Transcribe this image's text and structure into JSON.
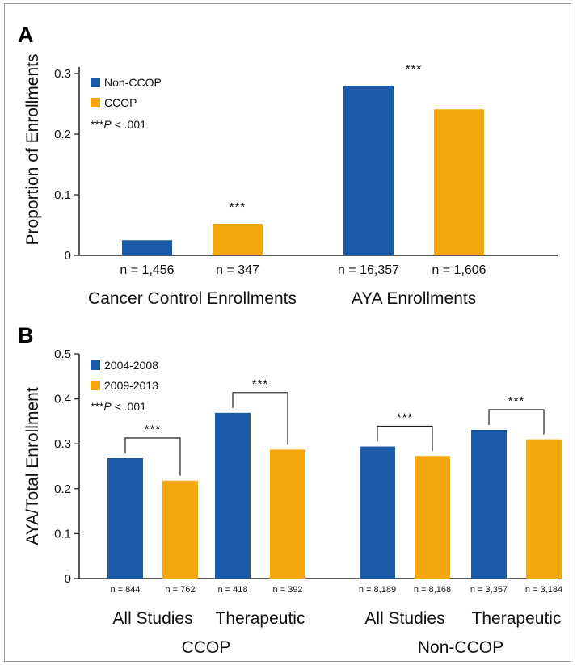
{
  "colors": {
    "blue": "#1a5aa6",
    "orange": "#f4a70a"
  },
  "chart_data": [
    {
      "panel": "A",
      "type": "bar",
      "ylabel": "Proportion of Enrollments",
      "ylim": [
        0,
        0.3
      ],
      "yticks": [
        "0",
        "0.1",
        "0.2",
        "0.3"
      ],
      "legend": [
        "Non-CCOP",
        "CCOP"
      ],
      "significance_note": {
        "stars": "***",
        "p": "P",
        "rest": " < .001"
      },
      "groups": [
        {
          "label": "Cancer Control Enrollments",
          "bars": [
            {
              "series": "Non-CCOP",
              "value": 0.025,
              "n": "n = 1,456"
            },
            {
              "series": "CCOP",
              "value": 0.052,
              "n": "n = 347"
            }
          ],
          "star": "***"
        },
        {
          "label": "AYA Enrollments",
          "bars": [
            {
              "series": "Non-CCOP",
              "value": 0.28,
              "n": "n = 16,357"
            },
            {
              "series": "CCOP",
              "value": 0.241,
              "n": "n = 1,606"
            }
          ],
          "star": "***"
        }
      ]
    },
    {
      "panel": "B",
      "type": "bar",
      "ylabel": "AYA/Total Enrollment",
      "ylim": [
        0,
        0.5
      ],
      "yticks": [
        "0",
        "0.1",
        "0.2",
        "0.3",
        "0.4",
        "0.5"
      ],
      "legend": [
        "2004-2008",
        "2009-2013"
      ],
      "significance_note": {
        "stars": "***",
        "p": "P",
        "rest": " < .001"
      },
      "groups": [
        {
          "label": "All Studies",
          "category": "CCOP",
          "bars": [
            {
              "series": "2004-2008",
              "value": 0.268,
              "n": "n = 844"
            },
            {
              "series": "2009-2013",
              "value": 0.218,
              "n": "n = 762"
            }
          ],
          "star": "***"
        },
        {
          "label": "Therapeutic",
          "category": "CCOP",
          "bars": [
            {
              "series": "2004-2008",
              "value": 0.369,
              "n": "n = 418"
            },
            {
              "series": "2009-2013",
              "value": 0.287,
              "n": "n = 392"
            }
          ],
          "star": "***"
        },
        {
          "label": "All Studies",
          "category": "Non-CCOP",
          "bars": [
            {
              "series": "2004-2008",
              "value": 0.294,
              "n": "n = 8,189"
            },
            {
              "series": "2009-2013",
              "value": 0.273,
              "n": "n = 8,168"
            }
          ],
          "star": "***"
        },
        {
          "label": "Therapeutic",
          "category": "Non-CCOP",
          "bars": [
            {
              "series": "2004-2008",
              "value": 0.331,
              "n": "n = 3,357"
            },
            {
              "series": "2009-2013",
              "value": 0.31,
              "n": "n = 3,184"
            }
          ],
          "star": "***"
        }
      ],
      "categories": [
        "CCOP",
        "Non-CCOP"
      ]
    }
  ]
}
